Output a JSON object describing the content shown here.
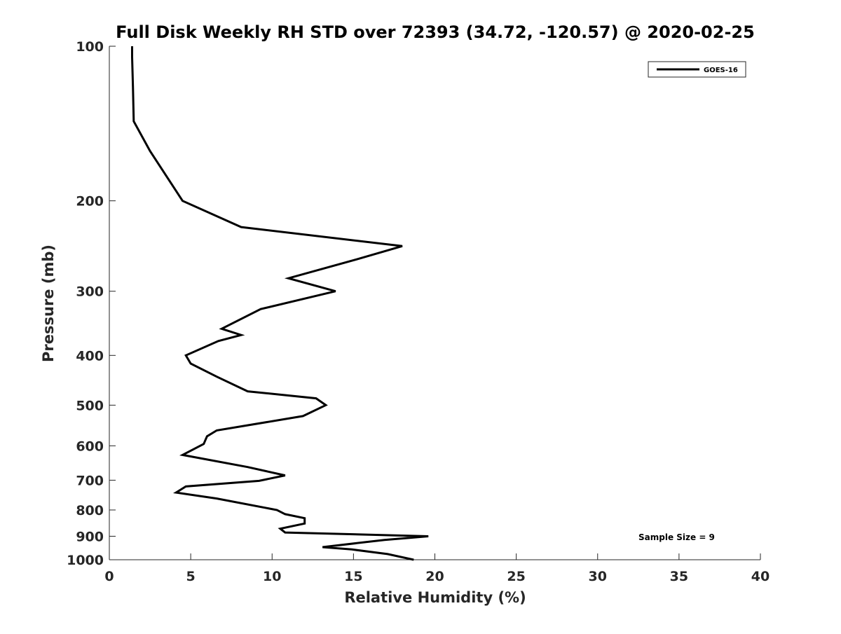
{
  "chart_data": {
    "type": "line",
    "title": "Full Disk Weekly RH STD over 72393 (34.72, -120.57) @ 2020-02-25",
    "xlabel": "Relative Humidity (%)",
    "ylabel": "Pressure (mb)",
    "xlim": [
      0,
      40
    ],
    "ylim": [
      100,
      1000
    ],
    "yscale": "log",
    "y_reversed": true,
    "grid": false,
    "legend_position": "top-right",
    "x_ticks": [
      0,
      5,
      10,
      15,
      20,
      25,
      30,
      35,
      40
    ],
    "x_tick_labels": [
      "0",
      "5",
      "10",
      "15",
      "20",
      "25",
      "30",
      "35",
      "40"
    ],
    "y_ticks": [
      100,
      200,
      300,
      400,
      500,
      600,
      700,
      800,
      900,
      1000
    ],
    "y_tick_labels": [
      "100",
      "200",
      "300",
      "400",
      "500",
      "600",
      "700",
      "800",
      "900",
      "1000"
    ],
    "series": [
      {
        "name": "GOES-16",
        "color": "#000000",
        "x": [
          1.4,
          1.4,
          1.45,
          1.5,
          2.5,
          4.5,
          8.1,
          18.0,
          15.2,
          11.0,
          13.9,
          9.3,
          6.9,
          8.1,
          6.7,
          4.7,
          5.0,
          6.6,
          8.5,
          12.7,
          13.3,
          11.9,
          6.6,
          6.0,
          5.8,
          4.5,
          8.5,
          10.8,
          9.2,
          4.7,
          4.1,
          6.6,
          10.3,
          10.8,
          12.0,
          12.0,
          10.5,
          10.8,
          19.6,
          16.9,
          13.1,
          14.9,
          17.1,
          18.7
        ],
        "y": [
          100,
          105,
          120,
          140,
          160,
          200,
          225,
          245,
          260,
          283,
          300,
          325,
          355,
          365,
          375,
          400,
          415,
          440,
          470,
          485,
          500,
          525,
          560,
          575,
          595,
          625,
          660,
          685,
          702,
          720,
          740,
          760,
          800,
          815,
          830,
          850,
          870,
          885,
          900,
          915,
          945,
          955,
          975,
          1000
        ]
      }
    ],
    "annotations": [
      "Sample Size = 9"
    ]
  }
}
